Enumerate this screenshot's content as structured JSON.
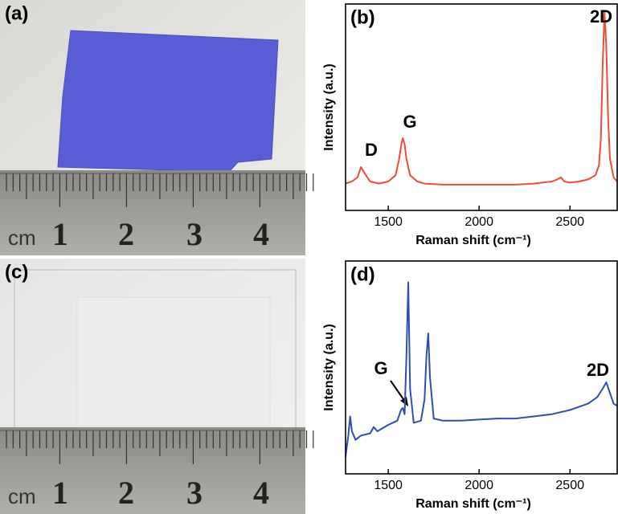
{
  "photos": [
    {
      "label": "(a)",
      "ruler_unit": "cm",
      "ruler_numbers": [
        "1",
        "2",
        "3",
        "4"
      ]
    },
    {
      "label": "(c)",
      "ruler_unit": "cm",
      "ruler_numbers": [
        "1",
        "2",
        "3",
        "4"
      ]
    }
  ],
  "chart_data": [
    {
      "type": "line",
      "panel_label": "(b)",
      "xlabel": "Raman shift (cm⁻¹)",
      "ylabel": "Intensity (a.u.)",
      "color": "#f04a3a",
      "xlim": [
        1265,
        2760
      ],
      "ylim": [
        0,
        100
      ],
      "xticks": [
        1500,
        2000,
        2500
      ],
      "annotations": [
        "D",
        "G",
        "2D"
      ],
      "x": [
        1265,
        1300,
        1330,
        1350,
        1370,
        1400,
        1450,
        1500,
        1540,
        1560,
        1570,
        1580,
        1590,
        1600,
        1620,
        1660,
        1700,
        1800,
        1900,
        2000,
        2100,
        2200,
        2300,
        2400,
        2430,
        2450,
        2470,
        2500,
        2550,
        2600,
        2640,
        2660,
        2670,
        2680,
        2690,
        2700,
        2710,
        2720,
        2740,
        2760
      ],
      "values": [
        13,
        14,
        16,
        21,
        18,
        14,
        13,
        14,
        17,
        25,
        31,
        35,
        32,
        25,
        17,
        14,
        13,
        12.5,
        12.5,
        12.5,
        12.5,
        12.5,
        13,
        14,
        15,
        16,
        14,
        13.5,
        14,
        15,
        17,
        22,
        35,
        70,
        96,
        80,
        45,
        25,
        16,
        14
      ]
    },
    {
      "type": "line",
      "panel_label": "(d)",
      "xlabel": "Raman shift (cm⁻¹)",
      "ylabel": "Intensity (a.u.)",
      "color": "#2e4fb0",
      "xlim": [
        1265,
        2760
      ],
      "ylim": [
        0,
        100
      ],
      "xticks": [
        1500,
        2000,
        2500
      ],
      "annotations": [
        "G",
        "2D"
      ],
      "x": [
        1265,
        1280,
        1290,
        1300,
        1320,
        1350,
        1400,
        1420,
        1440,
        1500,
        1550,
        1570,
        1580,
        1590,
        1600,
        1610,
        1620,
        1640,
        1680,
        1700,
        1710,
        1720,
        1730,
        1750,
        1800,
        1900,
        2000,
        2100,
        2200,
        2300,
        2400,
        2500,
        2600,
        2650,
        2680,
        2700,
        2720,
        2740,
        2760
      ],
      "values": [
        8,
        18,
        27,
        20,
        16,
        18,
        19,
        22,
        20,
        23,
        25,
        30,
        31,
        28,
        55,
        90,
        40,
        24,
        25,
        35,
        55,
        66,
        45,
        26,
        25,
        25,
        25.5,
        26,
        26,
        27,
        28,
        30,
        33,
        36,
        40,
        43,
        38,
        33,
        32
      ]
    }
  ]
}
